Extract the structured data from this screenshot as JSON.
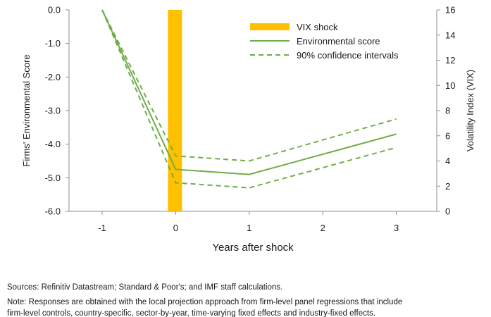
{
  "chart_data": {
    "type": "line",
    "xlabel": "Years after shock",
    "ylabel": "Firms' Environmental Score",
    "y2label": "Volatility Index (VIX)",
    "x": [
      -1,
      0,
      1,
      3
    ],
    "x_ticks": [
      "-1",
      "0",
      "1",
      "2",
      "3"
    ],
    "ylim": [
      -6,
      0
    ],
    "y_ticks": [
      "0.0",
      "-1.0",
      "-2.0",
      "-3.0",
      "-4.0",
      "-5.0",
      "-6.0"
    ],
    "y2lim": [
      0,
      16
    ],
    "y2_ticks": [
      "0",
      "2",
      "4",
      "6",
      "8",
      "10",
      "12",
      "14",
      "16"
    ],
    "bar": {
      "name": "VIX shock",
      "x": 0,
      "value": 16,
      "color": "#FFC000"
    },
    "series": [
      {
        "name": "Environmental score",
        "x": [
          -1,
          0,
          1,
          3
        ],
        "values": [
          0.0,
          -4.75,
          -4.9,
          -3.7
        ],
        "color": "#70AD47",
        "style": "solid"
      },
      {
        "name": "90% confidence intervals",
        "x": [
          -1,
          0,
          1,
          3
        ],
        "values": [
          0.0,
          -4.35,
          -4.5,
          -3.25
        ],
        "color": "#70AD47",
        "style": "dashed"
      },
      {
        "name": "",
        "x": [
          -1,
          0,
          1,
          3
        ],
        "values": [
          0.0,
          -5.15,
          -5.3,
          -4.1
        ],
        "color": "#70AD47",
        "style": "dashed"
      }
    ],
    "legend": {
      "position": "top-right",
      "entries": [
        "VIX shock",
        "Environmental score",
        "90% confidence intervals"
      ]
    },
    "grid": false
  },
  "notes": {
    "source": "Sources: Refinitiv Datastream; Standard & Poor's; and IMF staff calculations.",
    "note_line1": "Note: Responses are obtained with the local projection approach from firm-level panel regressions that include",
    "note_line2": "firm-level controls, country-specific, sector-by-year, time-varying fixed effects and industry-fixed effects."
  }
}
